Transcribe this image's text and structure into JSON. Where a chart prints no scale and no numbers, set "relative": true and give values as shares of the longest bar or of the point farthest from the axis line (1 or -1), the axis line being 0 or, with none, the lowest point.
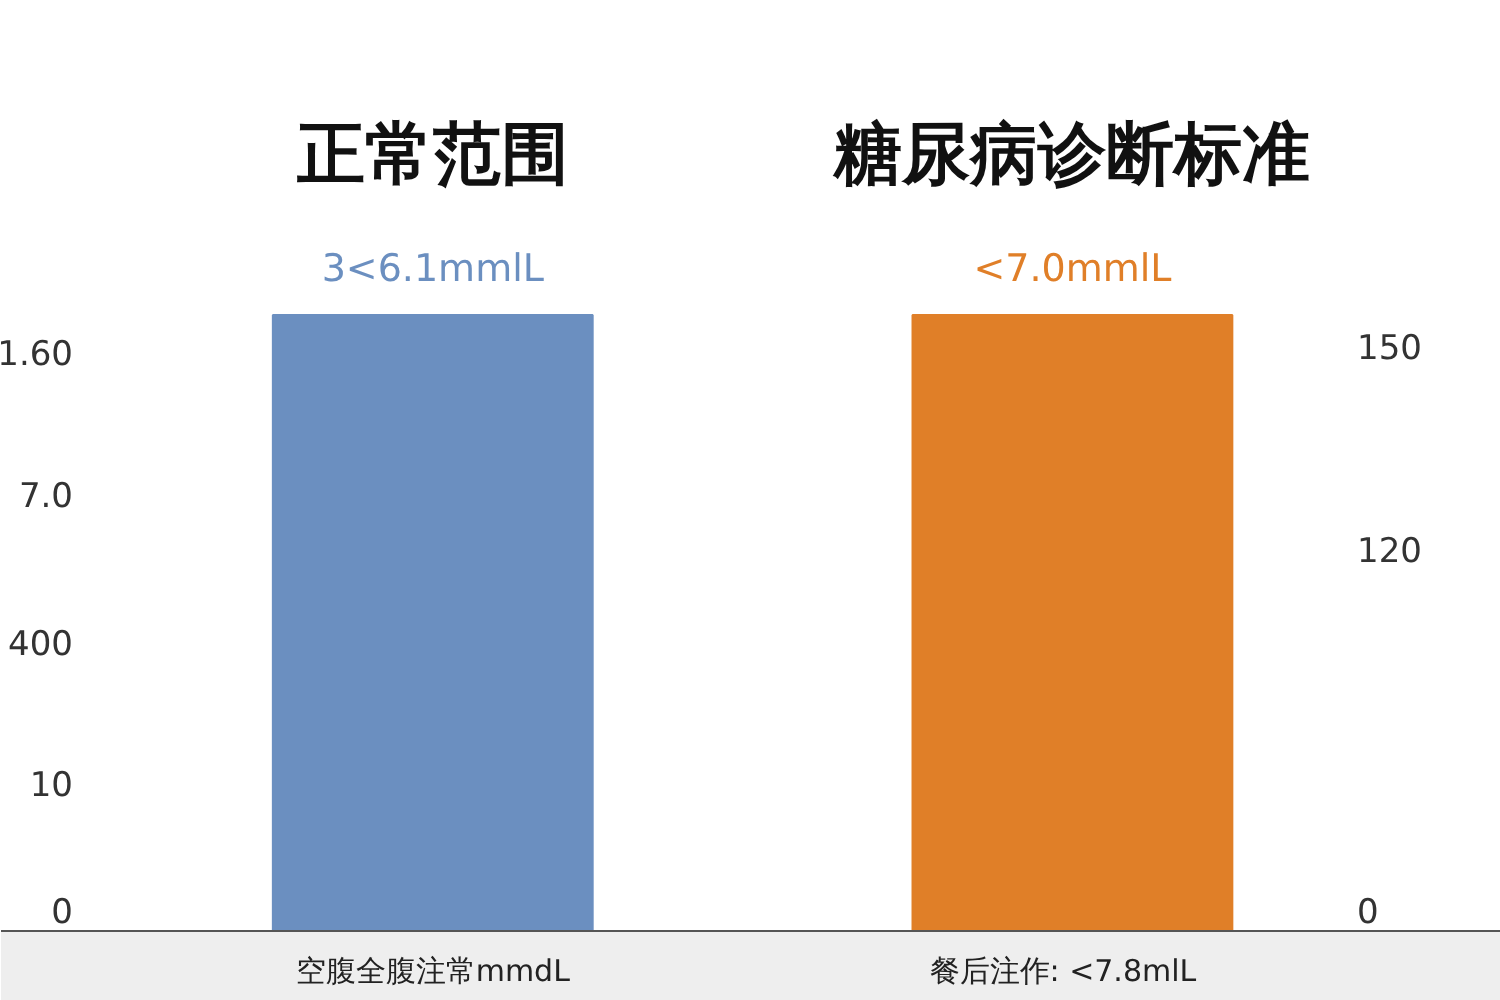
{
  "chart_data": {
    "type": "bar",
    "categories": [
      "空腹全腹注常mmdL",
      "餐后注作:   <7.8mlL"
    ],
    "values": [
      1,
      1
    ],
    "relative": true,
    "colors": [
      "#6b8fc0",
      "#e07f28"
    ],
    "annotations": [
      "正常范围",
      "糖尿病诊断标准",
      "3<6.1mmlL",
      "<7.0mmlL",
      "1.60",
      "7.0",
      "400",
      "10",
      "0",
      "150",
      "120",
      "0"
    ]
  }
}
